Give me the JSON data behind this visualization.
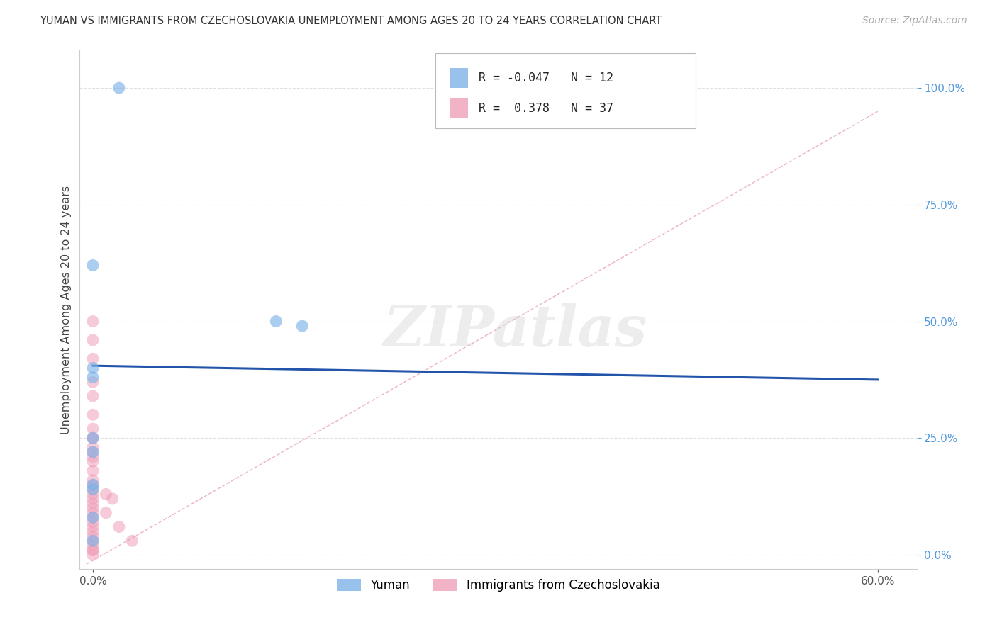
{
  "title": "YUMAN VS IMMIGRANTS FROM CZECHOSLOVAKIA UNEMPLOYMENT AMONG AGES 20 TO 24 YEARS CORRELATION CHART",
  "source": "Source: ZipAtlas.com",
  "ylabel": "Unemployment Among Ages 20 to 24 years",
  "legend_bottom": [
    "Yuman",
    "Immigrants from Czechoslovakia"
  ],
  "legend_R_blue": "-0.047",
  "legend_N_blue": "12",
  "legend_R_pink": "0.378",
  "legend_N_pink": "37",
  "blue_scatter_x": [
    0.02,
    0.0,
    0.14,
    0.16,
    0.0,
    0.0,
    0.0,
    0.0,
    0.0,
    0.0,
    0.0,
    0.0
  ],
  "blue_scatter_y": [
    1.0,
    0.62,
    0.5,
    0.49,
    0.4,
    0.38,
    0.25,
    0.22,
    0.15,
    0.14,
    0.08,
    0.03
  ],
  "pink_scatter_x": [
    0.0,
    0.0,
    0.0,
    0.0,
    0.0,
    0.0,
    0.0,
    0.0,
    0.0,
    0.0,
    0.0,
    0.0,
    0.0,
    0.0,
    0.0,
    0.0,
    0.0,
    0.0,
    0.0,
    0.0,
    0.0,
    0.0,
    0.0,
    0.0,
    0.0,
    0.0,
    0.0,
    0.0,
    0.0,
    0.0,
    0.0,
    0.0,
    0.01,
    0.01,
    0.015,
    0.02,
    0.03
  ],
  "pink_scatter_y": [
    0.5,
    0.46,
    0.42,
    0.37,
    0.34,
    0.3,
    0.27,
    0.25,
    0.23,
    0.21,
    0.2,
    0.18,
    0.16,
    0.15,
    0.14,
    0.13,
    0.12,
    0.11,
    0.1,
    0.09,
    0.08,
    0.07,
    0.06,
    0.05,
    0.04,
    0.03,
    0.02,
    0.01,
    0.01,
    0.0,
    0.25,
    0.22,
    0.13,
    0.09,
    0.12,
    0.06,
    0.03
  ],
  "blue_line_x": [
    0.0,
    0.6
  ],
  "blue_line_y": [
    0.405,
    0.375
  ],
  "pink_line_x": [
    -0.005,
    0.6
  ],
  "pink_line_y": [
    -0.02,
    0.95
  ],
  "xlim": [
    -0.01,
    0.63
  ],
  "ylim": [
    -0.03,
    1.08
  ],
  "y_ticks": [
    0.0,
    0.25,
    0.5,
    0.75,
    1.0
  ],
  "y_tick_labels": [
    "0.0%",
    "25.0%",
    "50.0%",
    "75.0%",
    "100.0%"
  ],
  "x_ticks": [
    0.0,
    0.6
  ],
  "x_tick_labels": [
    "0.0%",
    "60.0%"
  ],
  "watermark_text": "ZIPatlas",
  "bg_color": "#ffffff",
  "blue_color": "#7eb3e8",
  "pink_color": "#f0a0b8",
  "blue_line_color": "#2255aa",
  "pink_line_color": "#e8a0b0",
  "grid_color": "#e0e0e0",
  "ytick_color": "#5599dd",
  "title_color": "#333333",
  "source_color": "#aaaaaa"
}
